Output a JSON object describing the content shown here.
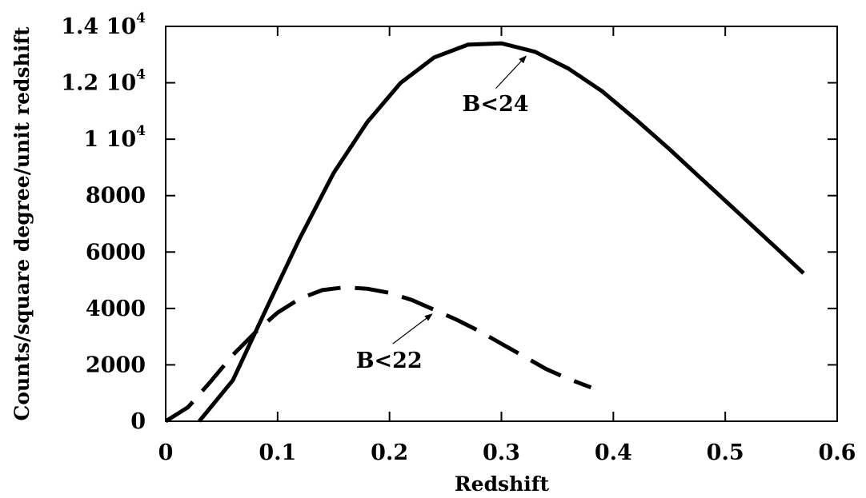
{
  "chart_data": {
    "type": "line",
    "xlabel": "Redshift",
    "ylabel": "Counts/square degree/unit redshift",
    "xlim": [
      0,
      0.6
    ],
    "ylim": [
      0,
      14000
    ],
    "x_ticks": [
      0,
      0.1,
      0.2,
      0.3,
      0.4,
      0.5,
      0.6
    ],
    "x_tick_labels": [
      "0",
      "0.1",
      "0.2",
      "0.3",
      "0.4",
      "0.5",
      "0.6"
    ],
    "y_ticks": [
      0,
      2000,
      4000,
      6000,
      8000,
      10000,
      12000,
      14000
    ],
    "y_tick_labels": [
      {
        "base": "0",
        "exp": ""
      },
      {
        "base": "2000",
        "exp": ""
      },
      {
        "base": "4000",
        "exp": ""
      },
      {
        "base": "6000",
        "exp": ""
      },
      {
        "base": "8000",
        "exp": ""
      },
      {
        "base": "1  10",
        "exp": "4"
      },
      {
        "base": "1.2  10",
        "exp": "4"
      },
      {
        "base": "1.4  10",
        "exp": "4"
      }
    ],
    "grid": false,
    "series": [
      {
        "name": "B<24",
        "style": "solid",
        "color": "#000000",
        "x": [
          0.03,
          0.06,
          0.09,
          0.12,
          0.15,
          0.18,
          0.21,
          0.24,
          0.27,
          0.3,
          0.33,
          0.36,
          0.39,
          0.42,
          0.45,
          0.48,
          0.51,
          0.54,
          0.57
        ],
        "y": [
          0,
          1450,
          4000,
          6500,
          8800,
          10600,
          12000,
          12900,
          13350,
          13400,
          13100,
          12500,
          11700,
          10700,
          9650,
          8550,
          7450,
          6350,
          5250
        ]
      },
      {
        "name": "B<22",
        "style": "dashed",
        "color": "#000000",
        "x": [
          0.0,
          0.02,
          0.04,
          0.06,
          0.08,
          0.1,
          0.12,
          0.14,
          0.16,
          0.18,
          0.2,
          0.22,
          0.24,
          0.26,
          0.28,
          0.3,
          0.32,
          0.34,
          0.36,
          0.38
        ],
        "y": [
          0,
          500,
          1400,
          2350,
          3150,
          3850,
          4350,
          4650,
          4750,
          4700,
          4550,
          4300,
          3950,
          3600,
          3200,
          2750,
          2300,
          1850,
          1500,
          1200
        ]
      }
    ],
    "annotations": [
      {
        "text": "B<24",
        "text_x": 0.265,
        "text_y": 11000,
        "arrow_from": [
          0.295,
          11800
        ],
        "arrow_to": [
          0.322,
          12950
        ]
      },
      {
        "text": "B<22",
        "text_x": 0.17,
        "text_y": 1900,
        "arrow_from": [
          0.203,
          2750
        ],
        "arrow_to": [
          0.238,
          3800
        ]
      }
    ]
  }
}
